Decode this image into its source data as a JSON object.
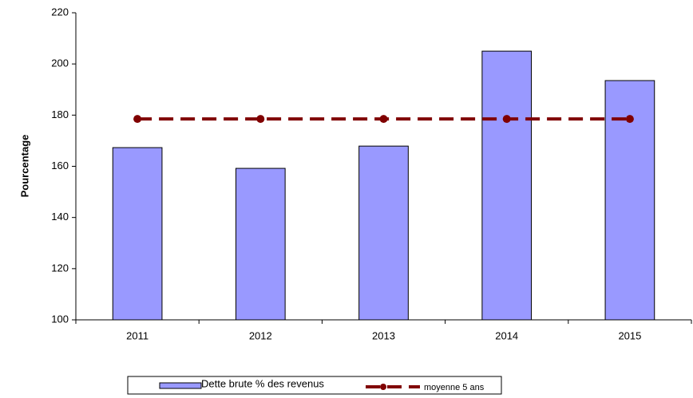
{
  "chart_data": {
    "type": "bar_line",
    "y_axis_label": "Pourcentage",
    "categories": [
      "2011",
      "2012",
      "2013",
      "2014",
      "2015"
    ],
    "series": [
      {
        "name": "Dette brute % des revenus",
        "type": "bar",
        "color": "#9999ff",
        "values": [
          167.3,
          159.2,
          167.9,
          205,
          193.5
        ]
      },
      {
        "name": "moyenne 5 ans",
        "type": "line",
        "color": "#800000",
        "values": [
          178.5,
          178.5,
          178.5,
          178.5,
          178.5
        ]
      }
    ],
    "ylim": [
      100,
      220
    ],
    "yticks": [
      100,
      120,
      140,
      160,
      180,
      200,
      220
    ],
    "grid": false,
    "legend": "bottom"
  }
}
